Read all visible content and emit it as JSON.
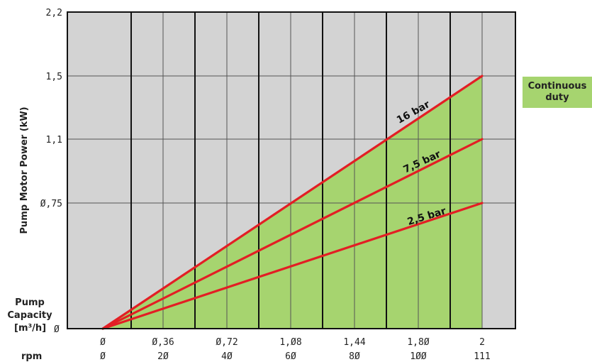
{
  "chart_data": {
    "type": "area",
    "ylabel": "Pump Motor Power (kW)",
    "xlabel_lines": [
      "Pump",
      "Capacity",
      "[m³/h]"
    ],
    "x_origin_label": "Ø",
    "secondary_xlabel": "rpm",
    "y_ticks": [
      "2,2",
      "1,5",
      "1,1",
      "0,75"
    ],
    "y_tick_values": [
      2.2,
      1.5,
      1.1,
      0.75
    ],
    "x_tick_labels": [
      "Ø",
      "Ø,36",
      "Ø,72",
      "1,Ø8",
      "1,44",
      "1,8Ø",
      "2"
    ],
    "x_tick_values": [
      0,
      0.36,
      0.72,
      1.08,
      1.44,
      1.8,
      2.0
    ],
    "rpm_tick_labels": [
      "Ø",
      "2Ø",
      "4Ø",
      "6Ø",
      "8Ø",
      "1ØØ",
      "111"
    ],
    "rpm_tick_values": [
      0,
      20,
      40,
      60,
      80,
      100,
      111
    ],
    "y_tick_labels_display": [
      "2,2",
      "1,5",
      "1,1",
      "Ø,75"
    ],
    "series": [
      {
        "name": "16 bar",
        "x": [
          0,
          2.0
        ],
        "y": [
          0,
          1.5
        ]
      },
      {
        "name": "7,5 bar",
        "x": [
          0,
          2.0
        ],
        "y": [
          0,
          1.1
        ]
      },
      {
        "name": "2,5 bar",
        "x": [
          0,
          2.0
        ],
        "y": [
          0,
          0.75
        ]
      }
    ],
    "legend": {
      "label": "Continuous\nduty",
      "color": "#a6d46f",
      "placement": "right"
    },
    "colors": {
      "line": "#e31e24",
      "fill": "#a6d46f",
      "background": "#d3d3d3",
      "grid": "#222222"
    },
    "grid": true
  }
}
